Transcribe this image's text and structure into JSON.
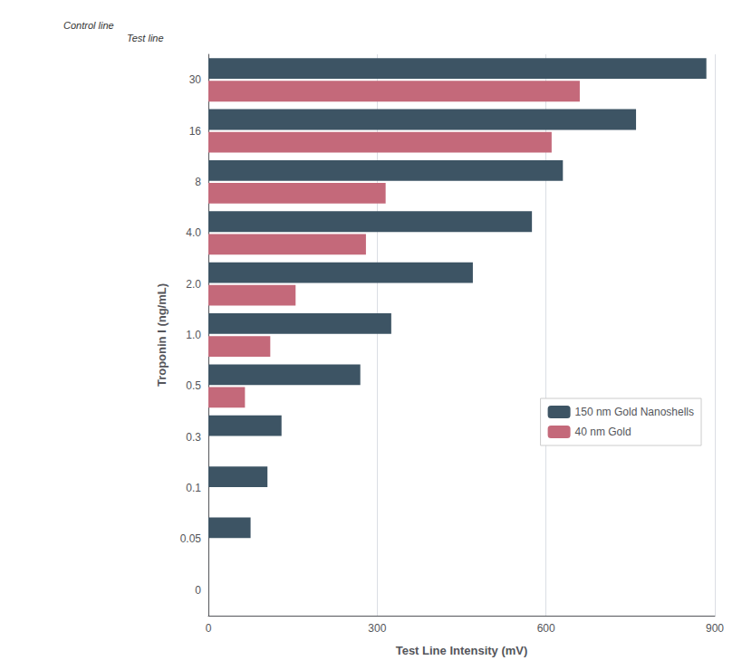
{
  "chart_data": {
    "type": "bar",
    "orientation": "horizontal",
    "xlabel": "Test Line Intensity (mV)",
    "ylabel": "Troponin I (ng/mL)",
    "categories": [
      "30",
      "16",
      "8",
      "4.0",
      "2.0",
      "1.0",
      "0.5",
      "0.3",
      "0.1",
      "0.05",
      "0"
    ],
    "series": [
      {
        "name": "150 nm Gold Nanoshells",
        "color": "#3d5464",
        "values": [
          885,
          760,
          630,
          575,
          470,
          325,
          270,
          130,
          105,
          75,
          0
        ]
      },
      {
        "name": "40 nm Gold",
        "color": "#c4697a",
        "values": [
          660,
          610,
          315,
          280,
          155,
          110,
          65,
          0,
          0,
          0,
          0
        ]
      }
    ],
    "xlim": [
      0,
      900
    ],
    "xticks": [
      0,
      300,
      600,
      900
    ],
    "grid": true,
    "legend": "right",
    "annotations": [
      "Control line",
      "Test line"
    ]
  }
}
